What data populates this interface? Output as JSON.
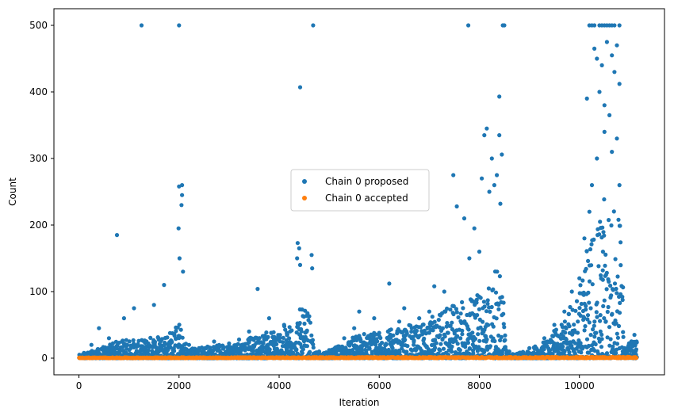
{
  "chart_data": {
    "type": "scatter",
    "title": "",
    "xlabel": "Iteration",
    "ylabel": "Count",
    "xlim": [
      -500,
      11700
    ],
    "ylim": [
      -25,
      525
    ],
    "x_ticks": [
      0,
      2000,
      4000,
      6000,
      8000,
      10000
    ],
    "y_ticks": [
      0,
      100,
      200,
      300,
      400,
      500
    ],
    "grid": false,
    "legend_position": "center",
    "series": [
      {
        "name": "Chain 0 proposed",
        "color": "#1f77b4",
        "points": [
          [
            1250,
            500
          ],
          [
            2000,
            500
          ],
          [
            4680,
            500
          ],
          [
            7780,
            500
          ],
          [
            8470,
            500
          ],
          [
            8500,
            500
          ],
          [
            10200,
            500
          ],
          [
            10250,
            500
          ],
          [
            10300,
            500
          ],
          [
            10400,
            500
          ],
          [
            10450,
            500
          ],
          [
            10500,
            500
          ],
          [
            10550,
            500
          ],
          [
            10600,
            500
          ],
          [
            10650,
            500
          ],
          [
            10700,
            500
          ],
          [
            10800,
            500
          ],
          [
            4420,
            407
          ],
          [
            8400,
            393
          ],
          [
            10150,
            390
          ],
          [
            10300,
            465
          ],
          [
            10350,
            450
          ],
          [
            10450,
            440
          ],
          [
            10550,
            475
          ],
          [
            10650,
            455
          ],
          [
            10700,
            430
          ],
          [
            10750,
            470
          ],
          [
            10800,
            412
          ],
          [
            10400,
            400
          ],
          [
            10500,
            380
          ],
          [
            10600,
            365
          ],
          [
            760,
            185
          ],
          [
            2000,
            258
          ],
          [
            2060,
            260
          ],
          [
            2060,
            245
          ],
          [
            2050,
            230
          ],
          [
            1990,
            195
          ],
          [
            2010,
            150
          ],
          [
            2080,
            130
          ],
          [
            4370,
            173
          ],
          [
            4400,
            165
          ],
          [
            4360,
            150
          ],
          [
            4420,
            140
          ],
          [
            4650,
            155
          ],
          [
            4660,
            135
          ],
          [
            3570,
            104
          ],
          [
            7480,
            275
          ],
          [
            7550,
            228
          ],
          [
            7700,
            210
          ],
          [
            7900,
            195
          ],
          [
            8050,
            270
          ],
          [
            8100,
            335
          ],
          [
            8150,
            345
          ],
          [
            8250,
            300
          ],
          [
            8350,
            275
          ],
          [
            8400,
            335
          ],
          [
            8450,
            306
          ],
          [
            8420,
            232
          ],
          [
            8300,
            260
          ],
          [
            8200,
            250
          ],
          [
            8000,
            160
          ],
          [
            7800,
            150
          ],
          [
            6200,
            112
          ],
          [
            5600,
            70
          ],
          [
            5900,
            60
          ],
          [
            6500,
            75
          ],
          [
            7100,
            108
          ],
          [
            7300,
            100
          ],
          [
            1100,
            75
          ],
          [
            1500,
            80
          ],
          [
            1700,
            110
          ],
          [
            900,
            60
          ],
          [
            400,
            45
          ],
          [
            250,
            20
          ],
          [
            100,
            8
          ],
          [
            50,
            4
          ],
          [
            600,
            30
          ],
          [
            2200,
            20
          ],
          [
            2400,
            15
          ],
          [
            2700,
            25
          ],
          [
            3000,
            22
          ],
          [
            3200,
            28
          ],
          [
            3400,
            40
          ],
          [
            3800,
            60
          ],
          [
            4100,
            50
          ],
          [
            4800,
            10
          ],
          [
            5000,
            12
          ],
          [
            5300,
            30
          ],
          [
            5500,
            45
          ],
          [
            6000,
            38
          ],
          [
            6400,
            55
          ],
          [
            6800,
            60
          ],
          [
            7000,
            70
          ],
          [
            8600,
            10
          ],
          [
            8800,
            8
          ],
          [
            9000,
            15
          ],
          [
            9300,
            30
          ],
          [
            9500,
            50
          ],
          [
            9700,
            70
          ],
          [
            9850,
            100
          ],
          [
            10000,
            120
          ],
          [
            10100,
            180
          ],
          [
            10200,
            220
          ],
          [
            10250,
            260
          ],
          [
            10350,
            300
          ],
          [
            10500,
            340
          ],
          [
            10650,
            310
          ],
          [
            10750,
            330
          ],
          [
            10800,
            260
          ],
          [
            10900,
            15
          ],
          [
            11000,
            20
          ],
          [
            11100,
            35
          ]
        ],
        "envelope": [
          [
            0,
            0,
            5
          ],
          [
            300,
            0,
            12
          ],
          [
            600,
            0,
            20
          ],
          [
            800,
            0,
            28
          ],
          [
            1000,
            0,
            30
          ],
          [
            1200,
            0,
            26
          ],
          [
            1500,
            0,
            35
          ],
          [
            1800,
            0,
            40
          ],
          [
            2000,
            0,
            55
          ],
          [
            2100,
            0,
            30
          ],
          [
            2200,
            0,
            15
          ],
          [
            2500,
            0,
            18
          ],
          [
            2800,
            0,
            20
          ],
          [
            3000,
            0,
            22
          ],
          [
            3300,
            0,
            28
          ],
          [
            3600,
            0,
            35
          ],
          [
            3900,
            0,
            45
          ],
          [
            4200,
            0,
            50
          ],
          [
            4400,
            0,
            75
          ],
          [
            4600,
            0,
            70
          ],
          [
            4700,
            0,
            10
          ],
          [
            4900,
            0,
            8
          ],
          [
            5100,
            0,
            15
          ],
          [
            5400,
            0,
            30
          ],
          [
            5700,
            0,
            40
          ],
          [
            6000,
            0,
            38
          ],
          [
            6300,
            0,
            45
          ],
          [
            6600,
            0,
            50
          ],
          [
            6900,
            0,
            55
          ],
          [
            7200,
            0,
            70
          ],
          [
            7500,
            0,
            80
          ],
          [
            7800,
            0,
            90
          ],
          [
            8100,
            0,
            110
          ],
          [
            8300,
            0,
            130
          ],
          [
            8450,
            0,
            140
          ],
          [
            8550,
            0,
            8
          ],
          [
            8700,
            0,
            6
          ],
          [
            9000,
            0,
            12
          ],
          [
            9300,
            0,
            28
          ],
          [
            9600,
            0,
            50
          ],
          [
            9900,
            0,
            90
          ],
          [
            10100,
            0,
            150
          ],
          [
            10300,
            0,
            200
          ],
          [
            10500,
            0,
            240
          ],
          [
            10700,
            0,
            220
          ],
          [
            10850,
            0,
            200
          ],
          [
            10900,
            0,
            20
          ],
          [
            11150,
            0,
            30
          ]
        ]
      },
      {
        "name": "Chain 0 accepted",
        "color": "#ff7f0e",
        "envelope": [
          [
            0,
            0,
            1
          ],
          [
            11150,
            0,
            2
          ]
        ]
      }
    ]
  }
}
